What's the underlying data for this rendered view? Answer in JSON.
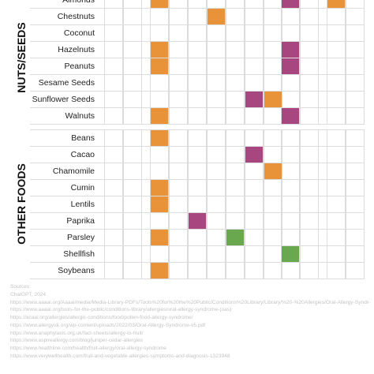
{
  "chart_data": {
    "type": "heatmap",
    "columns": 13,
    "groups": [
      {
        "label": "NUTS/SEEDS",
        "rows": [
          {
            "label": "Almonds",
            "cells": [
              {
                "col": 2,
                "color": "orange"
              },
              {
                "col": 9,
                "color": "magenta"
              },
              {
                "col": 11,
                "color": "orange"
              }
            ]
          },
          {
            "label": "Chestnuts",
            "cells": [
              {
                "col": 5,
                "color": "orange"
              }
            ]
          },
          {
            "label": "Coconut",
            "cells": []
          },
          {
            "label": "Hazelnuts",
            "cells": [
              {
                "col": 2,
                "color": "orange"
              },
              {
                "col": 9,
                "color": "magenta"
              }
            ]
          },
          {
            "label": "Peanuts",
            "cells": [
              {
                "col": 2,
                "color": "orange"
              },
              {
                "col": 9,
                "color": "magenta"
              }
            ]
          },
          {
            "label": "Sesame Seeds",
            "cells": []
          },
          {
            "label": "Sunflower Seeds",
            "cells": [
              {
                "col": 7,
                "color": "magenta"
              },
              {
                "col": 8,
                "color": "orange"
              }
            ]
          },
          {
            "label": "Walnuts",
            "cells": [
              {
                "col": 2,
                "color": "orange"
              },
              {
                "col": 9,
                "color": "magenta"
              }
            ]
          }
        ]
      },
      {
        "label": "OTHER FOODS",
        "rows": [
          {
            "label": "Beans",
            "cells": [
              {
                "col": 2,
                "color": "orange"
              }
            ]
          },
          {
            "label": "Cacao",
            "cells": [
              {
                "col": 7,
                "color": "magenta"
              }
            ]
          },
          {
            "label": "Chamomile",
            "cells": [
              {
                "col": 8,
                "color": "orange"
              }
            ]
          },
          {
            "label": "Cumin",
            "cells": [
              {
                "col": 2,
                "color": "orange"
              }
            ]
          },
          {
            "label": "Lentils",
            "cells": [
              {
                "col": 2,
                "color": "orange"
              }
            ]
          },
          {
            "label": "Paprika",
            "cells": [
              {
                "col": 4,
                "color": "magenta"
              }
            ]
          },
          {
            "label": "Parsley",
            "cells": [
              {
                "col": 2,
                "color": "orange"
              },
              {
                "col": 6,
                "color": "green"
              }
            ]
          },
          {
            "label": "Shellfish",
            "cells": [
              {
                "col": 9,
                "color": "green"
              }
            ]
          },
          {
            "label": "Soybeans",
            "cells": [
              {
                "col": 2,
                "color": "orange"
              }
            ]
          }
        ]
      }
    ],
    "colors": {
      "orange": "#e8923a",
      "magenta": "#a8467f",
      "green": "#6aa84f",
      "grid": "#dcdcdc"
    }
  },
  "sources": [
    "Sources:",
    "ChatGPT, 2024",
    "https://www.aaaai.org/Aaaai/media/Media-Library-PDFs/Tools%20for%20the%20Public/Conditions%20Library/Library/%20-%20Allergies/Oral-Allergy-Syndrome.pdf",
    "https://www.aaaai.org/tools-for-the-public/conditions-library/allergies/oral-allergy-syndrome-(oas)",
    "https://acaai.org/allergies/allergic-conditions/food/pollen-food-allergy-syndrome/",
    "https://www.allergyuk.org/wp-content/uploads/2022/03/Oral-Allergy-Syndrome-v5.pdf",
    "https://www.anaphylaxis.org.uk/fact-sheets/allergy-to-fruit/",
    "https://www.aspireallergy.com/blog/juniper-cedar-allergies",
    "https://www.healthline.com/health/fruit-allergy/oral-allergy-syndrome",
    "https://www.verywellhealth.com/fruit-and-vegetable-allergies-symptoms-and-diagnosis-1323948"
  ]
}
